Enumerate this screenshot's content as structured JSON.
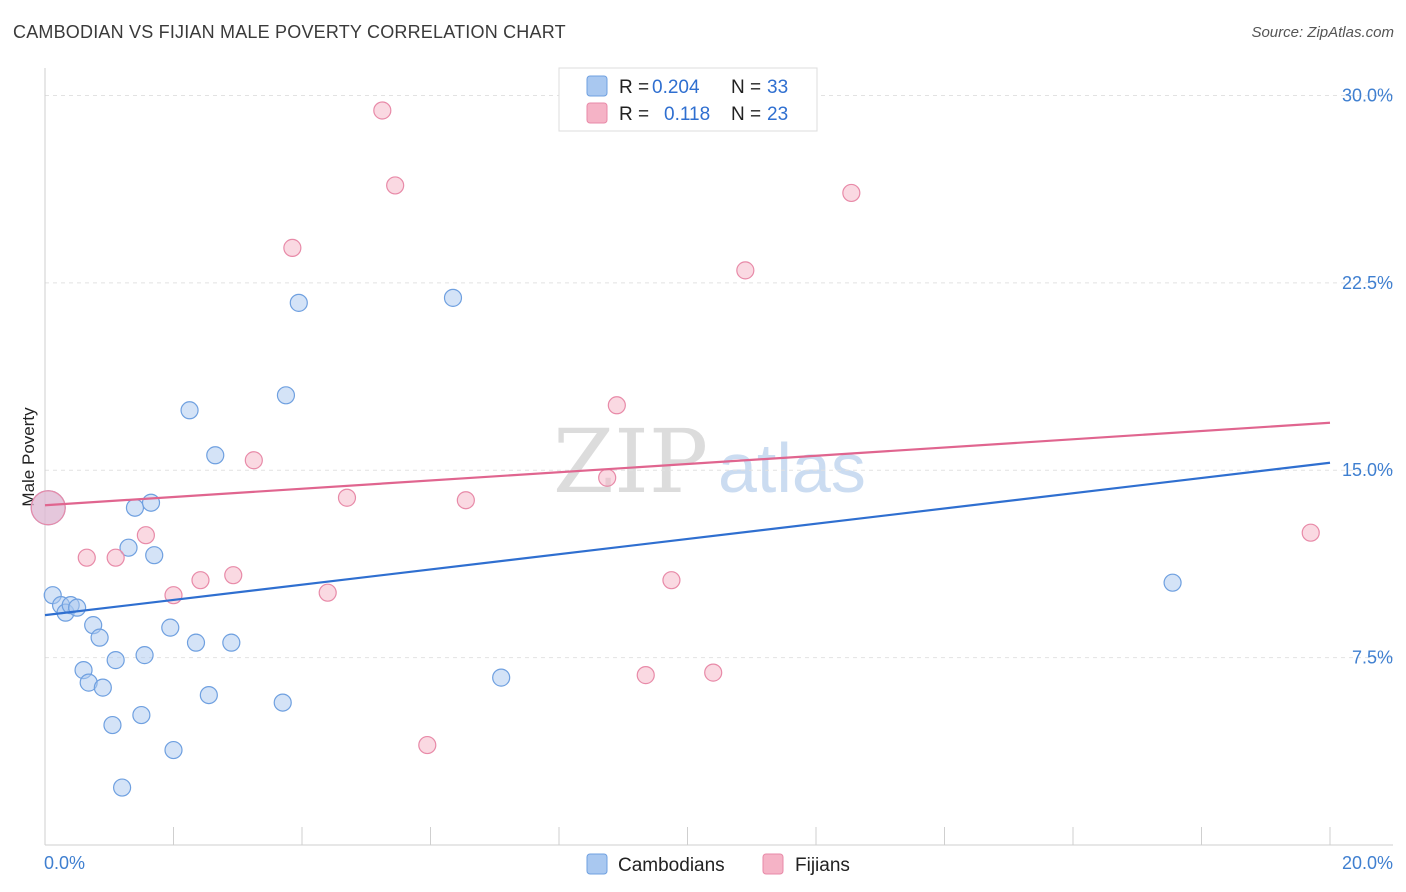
{
  "header": {
    "title": "CAMBODIAN VS FIJIAN MALE POVERTY CORRELATION CHART",
    "source": "Source: ZipAtlas.com"
  },
  "watermark": {
    "part1": "ZIP",
    "part2": "atlas"
  },
  "legend_top": [
    {
      "r_label": "R =",
      "r_value": "0.204",
      "n_label": "N =",
      "n_value": "33",
      "color": "#a9c8f0"
    },
    {
      "r_label": "R =",
      "r_value": "0.118",
      "n_label": "N =",
      "n_value": "23",
      "color": "#f5b3c6"
    }
  ],
  "chart_data": {
    "type": "scatter",
    "title": "CAMBODIAN VS FIJIAN MALE POVERTY CORRELATION CHART",
    "xlabel": "",
    "ylabel": "Male Poverty",
    "xlim": [
      0,
      20
    ],
    "ylim": [
      0,
      30.7
    ],
    "x_tick_labels": {
      "min": "0.0%",
      "max": "20.0%"
    },
    "y_ticks": [
      {
        "value": 7.5,
        "label": "7.5%"
      },
      {
        "value": 15,
        "label": "15.0%"
      },
      {
        "value": 22.5,
        "label": "22.5%"
      },
      {
        "value": 30,
        "label": "30.0%"
      }
    ],
    "grid": true,
    "legend_position": "bottom-center",
    "series": [
      {
        "name": "Cambodians",
        "color": "#a9c8f0",
        "stroke": "#6fa0e0",
        "trend_color": "#2f6fd0",
        "trend": {
          "x0": 0,
          "y0": 9.2,
          "x1": 20,
          "y1": 15.3
        },
        "points": [
          {
            "x": 0.05,
            "y": 13.5,
            "big": true
          },
          {
            "x": 0.12,
            "y": 10.0
          },
          {
            "x": 0.25,
            "y": 9.6
          },
          {
            "x": 0.32,
            "y": 9.3
          },
          {
            "x": 0.4,
            "y": 9.6
          },
          {
            "x": 0.5,
            "y": 9.5
          },
          {
            "x": 0.75,
            "y": 8.8
          },
          {
            "x": 0.85,
            "y": 8.3
          },
          {
            "x": 0.6,
            "y": 7.0
          },
          {
            "x": 0.68,
            "y": 6.5
          },
          {
            "x": 0.9,
            "y": 6.3
          },
          {
            "x": 1.1,
            "y": 7.4
          },
          {
            "x": 1.05,
            "y": 4.8
          },
          {
            "x": 1.2,
            "y": 2.3
          },
          {
            "x": 1.3,
            "y": 11.9
          },
          {
            "x": 1.4,
            "y": 13.5
          },
          {
            "x": 1.5,
            "y": 5.2
          },
          {
            "x": 1.55,
            "y": 7.6
          },
          {
            "x": 1.65,
            "y": 13.7
          },
          {
            "x": 1.7,
            "y": 11.6
          },
          {
            "x": 1.95,
            "y": 8.7
          },
          {
            "x": 2.0,
            "y": 3.8
          },
          {
            "x": 2.25,
            "y": 17.4
          },
          {
            "x": 2.35,
            "y": 8.1
          },
          {
            "x": 2.55,
            "y": 6.0
          },
          {
            "x": 2.65,
            "y": 15.6
          },
          {
            "x": 2.9,
            "y": 8.1
          },
          {
            "x": 3.7,
            "y": 5.7
          },
          {
            "x": 3.75,
            "y": 18.0
          },
          {
            "x": 3.95,
            "y": 21.7
          },
          {
            "x": 6.35,
            "y": 21.9
          },
          {
            "x": 7.1,
            "y": 6.7
          },
          {
            "x": 17.55,
            "y": 10.5
          }
        ]
      },
      {
        "name": "Fijians",
        "color": "#f5b3c6",
        "stroke": "#e88aa8",
        "trend_color": "#e0658f",
        "trend": {
          "x0": 0,
          "y0": 13.6,
          "x1": 20,
          "y1": 16.9
        },
        "points": [
          {
            "x": 0.05,
            "y": 13.5,
            "big": true
          },
          {
            "x": 0.65,
            "y": 11.5
          },
          {
            "x": 1.1,
            "y": 11.5
          },
          {
            "x": 1.57,
            "y": 12.4
          },
          {
            "x": 2.0,
            "y": 10.0
          },
          {
            "x": 2.42,
            "y": 10.6
          },
          {
            "x": 2.93,
            "y": 10.8
          },
          {
            "x": 3.25,
            "y": 15.4
          },
          {
            "x": 3.85,
            "y": 23.9
          },
          {
            "x": 4.4,
            "y": 10.1
          },
          {
            "x": 4.7,
            "y": 13.9
          },
          {
            "x": 5.25,
            "y": 29.4
          },
          {
            "x": 5.45,
            "y": 26.4
          },
          {
            "x": 5.95,
            "y": 4.0
          },
          {
            "x": 6.55,
            "y": 13.8
          },
          {
            "x": 8.75,
            "y": 14.7
          },
          {
            "x": 8.9,
            "y": 17.6
          },
          {
            "x": 9.35,
            "y": 6.8
          },
          {
            "x": 9.75,
            "y": 10.6
          },
          {
            "x": 10.4,
            "y": 6.9
          },
          {
            "x": 10.9,
            "y": 23.0
          },
          {
            "x": 12.55,
            "y": 26.1
          },
          {
            "x": 19.7,
            "y": 12.5
          }
        ]
      }
    ]
  }
}
